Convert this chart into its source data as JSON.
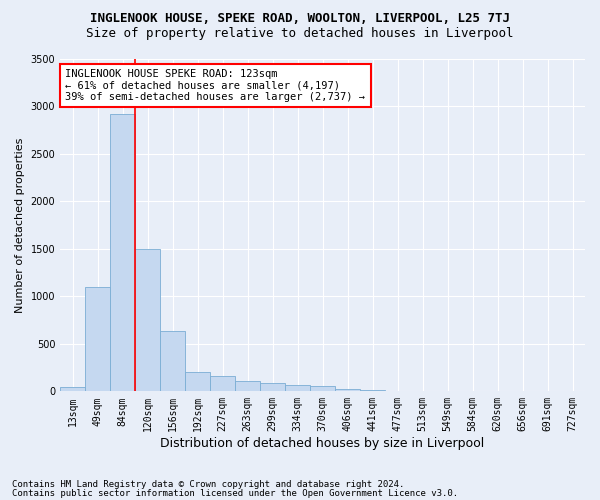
{
  "title": "INGLENOOK HOUSE, SPEKE ROAD, WOOLTON, LIVERPOOL, L25 7TJ",
  "subtitle": "Size of property relative to detached houses in Liverpool",
  "xlabel": "Distribution of detached houses by size in Liverpool",
  "ylabel": "Number of detached properties",
  "footnote1": "Contains HM Land Registry data © Crown copyright and database right 2024.",
  "footnote2": "Contains public sector information licensed under the Open Government Licence v3.0.",
  "bin_labels": [
    "13sqm",
    "49sqm",
    "84sqm",
    "120sqm",
    "156sqm",
    "192sqm",
    "227sqm",
    "263sqm",
    "299sqm",
    "334sqm",
    "370sqm",
    "406sqm",
    "441sqm",
    "477sqm",
    "513sqm",
    "549sqm",
    "584sqm",
    "620sqm",
    "656sqm",
    "691sqm",
    "727sqm"
  ],
  "bar_heights": [
    50,
    1100,
    2920,
    1500,
    640,
    200,
    160,
    110,
    90,
    70,
    55,
    20,
    15,
    0,
    0,
    0,
    0,
    0,
    0,
    0,
    0
  ],
  "bar_color": "#c5d8f0",
  "bar_edgecolor": "#7aadd4",
  "vline_color": "red",
  "vline_index": 2.5,
  "annotation_text": "INGLENOOK HOUSE SPEKE ROAD: 123sqm\n← 61% of detached houses are smaller (4,197)\n39% of semi-detached houses are larger (2,737) →",
  "annotation_box_color": "white",
  "annotation_box_edgecolor": "red",
  "ylim": [
    0,
    3500
  ],
  "background_color": "#e8eef8",
  "axes_background": "#e8eef8",
  "title_fontsize": 9,
  "subtitle_fontsize": 9,
  "ylabel_fontsize": 8,
  "xlabel_fontsize": 9,
  "tick_fontsize": 7,
  "annotation_fontsize": 7.5,
  "footnote_fontsize": 6.5
}
